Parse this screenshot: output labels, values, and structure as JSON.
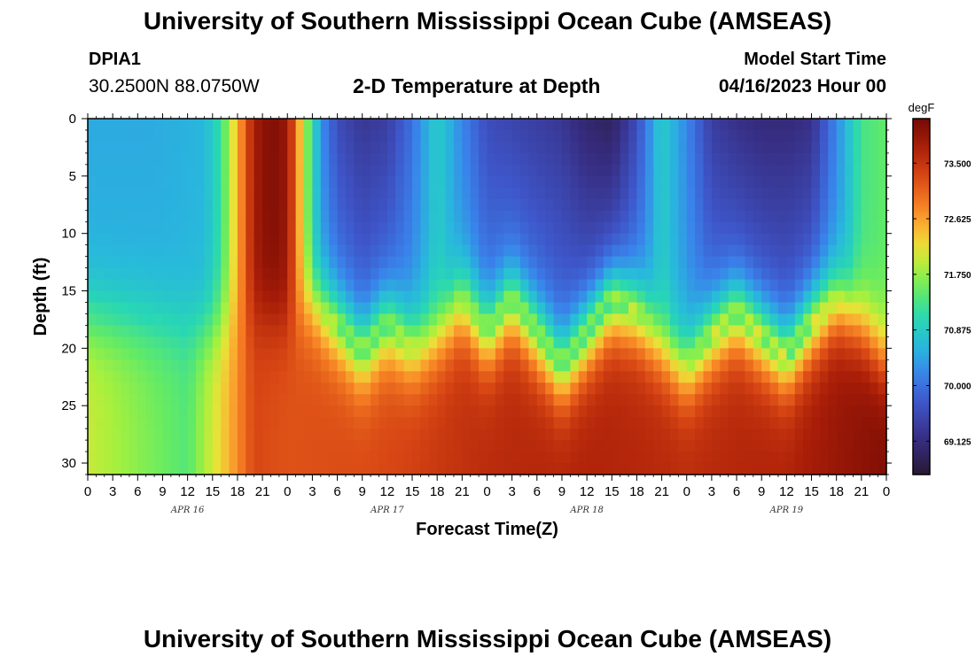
{
  "header": {
    "title": "University of Southern Mississippi Ocean Cube (AMSEAS)",
    "station_id": "DPIA1",
    "coords": "30.2500N  88.0750W",
    "subtitle": "2-D Temperature at Depth",
    "model_start_label": "Model Start Time",
    "model_start_value": "04/16/2023 Hour 00"
  },
  "footer": {
    "title": "University of Southern Mississippi Ocean Cube (AMSEAS)"
  },
  "chart_data": {
    "type": "heatmap",
    "title": "2-D Temperature at Depth",
    "xlabel": "Forecast Time(Z)",
    "ylabel": "Depth (ft)",
    "x_range_hours": [
      0,
      96
    ],
    "y_range_ft": [
      0,
      31
    ],
    "x_ticks_hours": [
      0,
      3,
      6,
      9,
      12,
      15,
      18,
      21,
      24,
      27,
      30,
      33,
      36,
      39,
      42,
      45,
      48,
      51,
      54,
      57,
      60,
      63,
      66,
      69,
      72,
      75,
      78,
      81,
      84,
      87,
      90,
      93,
      96
    ],
    "x_tick_labels": [
      "0",
      "3",
      "6",
      "9",
      "12",
      "15",
      "18",
      "21",
      "0",
      "3",
      "6",
      "9",
      "12",
      "15",
      "18",
      "21",
      "0",
      "3",
      "6",
      "9",
      "12",
      "15",
      "18",
      "21",
      "0",
      "3",
      "6",
      "9",
      "12",
      "15",
      "18",
      "21",
      "0"
    ],
    "day_labels": [
      {
        "text": "APR 16",
        "hour": 12
      },
      {
        "text": "APR 17",
        "hour": 36
      },
      {
        "text": "APR 18",
        "hour": 60
      },
      {
        "text": "APR 19",
        "hour": 84
      }
    ],
    "y_ticks": [
      0,
      5,
      10,
      15,
      20,
      25,
      30
    ],
    "y_tick_labels": [
      "0",
      "5",
      "10",
      "15",
      "20",
      "25",
      "30"
    ],
    "colorbar": {
      "unit": "degF",
      "min": 68.6,
      "max": 74.2,
      "ticks": [
        69.125,
        70.0,
        70.875,
        71.75,
        72.625,
        73.5
      ],
      "tick_labels": [
        "69.125",
        "70.000",
        "70.875",
        "71.750",
        "72.625",
        "73.500"
      ]
    },
    "surface_layer": {
      "description_hours": "approximate upper-layer temperature (degF) vs forecast hour",
      "hours": [
        0,
        8,
        14,
        16,
        18,
        20,
        22,
        24,
        26,
        28,
        30,
        33,
        36,
        39,
        42,
        45,
        48,
        51,
        54,
        57,
        60,
        63,
        66,
        69,
        72,
        75,
        78,
        81,
        84,
        87,
        90,
        93,
        96
      ],
      "temps": [
        70.5,
        70.5,
        70.6,
        71.2,
        72.5,
        73.8,
        74.1,
        73.9,
        72.0,
        70.3,
        69.6,
        69.3,
        69.4,
        70.0,
        70.9,
        70.2,
        69.6,
        69.5,
        69.4,
        69.3,
        69.0,
        68.9,
        69.6,
        70.9,
        70.2,
        69.4,
        69.2,
        69.1,
        69.1,
        69.2,
        70.2,
        71.3,
        71.5
      ]
    },
    "bottom_layer": {
      "description_hours": "approximate bottom-layer temperature (degF) vs forecast hour",
      "hours": [
        0,
        12,
        17,
        20,
        24,
        36,
        48,
        60,
        72,
        84,
        96
      ],
      "temps": [
        72.0,
        71.4,
        72.5,
        73.3,
        73.2,
        73.3,
        73.6,
        73.7,
        73.6,
        73.7,
        74.1
      ]
    },
    "thermocline_depth_ft": {
      "hours": [
        0,
        15,
        18,
        21,
        24,
        27,
        30,
        33,
        36,
        39,
        42,
        45,
        48,
        51,
        54,
        57,
        60,
        63,
        66,
        69,
        72,
        75,
        78,
        81,
        84,
        87,
        90,
        93,
        96
      ],
      "depth": [
        17,
        18,
        17.5,
        17,
        17.5,
        16,
        18,
        20.5,
        18,
        20,
        19,
        16,
        19,
        16,
        19,
        22,
        19,
        16,
        17,
        20,
        22,
        19,
        17,
        19,
        21,
        18,
        16,
        18,
        21
      ]
    }
  }
}
